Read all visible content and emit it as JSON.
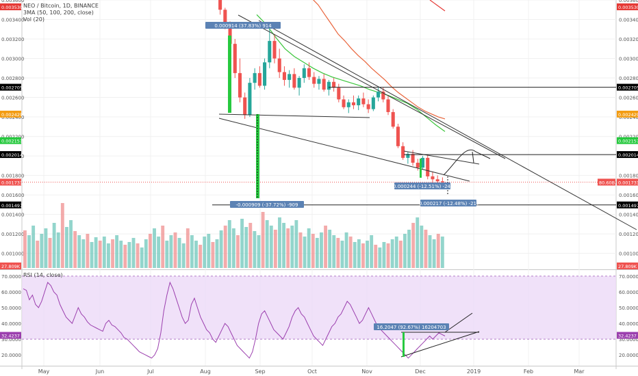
{
  "header": {
    "symbol_line": "NEO / Bitcoin, 1D, BINANCE",
    "ma_line": "3MA (50, 100, 200, close)",
    "vol_line": "Vol (20)"
  },
  "rsi_panel": {
    "label": "RSI (14, close)"
  },
  "colors": {
    "up": "#6fc7bb",
    "down": "#ef8f8f",
    "ma_fast": "#3ac53a",
    "ma_slow": "#e9633a",
    "rsi_line": "#9b3fae",
    "rsi_band": "#ecd9f7",
    "current_price": "#ef5350",
    "ruler": "#5b82b4"
  },
  "chart_data": [
    {
      "type": "candlestick",
      "series_name": "NEO / Bitcoin, 1D, BINANCE",
      "x_ticks": [
        "May",
        "Jun",
        "Jul",
        "Aug",
        "Sep",
        "Oct",
        "Nov",
        "Dec",
        "2019",
        "Feb",
        "Mar"
      ],
      "y_ticks": [
        "0.003600",
        "0.003400",
        "0.003200",
        "0.003000",
        "0.002800",
        "0.002600",
        "0.002400",
        "0.002200",
        "0.002000",
        "0.001800",
        "0.001600",
        "0.001400",
        "0.001200",
        "0.001000"
      ],
      "ylim": [
        0.00085,
        0.0036
      ],
      "price_labels": [
        {
          "text": "0.003530",
          "value": 0.00353,
          "color": "#e53935"
        },
        {
          "text": "0.002705",
          "value": 0.002705,
          "color": "#000000"
        },
        {
          "text": "0.002429",
          "value": 0.002429,
          "color": "#f39c12"
        },
        {
          "text": "0.002157",
          "value": 0.002157,
          "color": "#27c93f"
        },
        {
          "text": "0.002014",
          "value": 0.002014,
          "color": "#000000"
        },
        {
          "text": "0.001731",
          "value": 0.001731,
          "color": "#ef5350"
        },
        {
          "text": "0.001497",
          "value": 0.001497,
          "color": "#000000"
        }
      ],
      "left_labels": [
        {
          "text": "0.003530",
          "value": 0.00353,
          "color": "#e53935"
        },
        {
          "text": "0.002705",
          "value": 0.002705,
          "color": "#000000"
        },
        {
          "text": "0.002429",
          "value": 0.002429,
          "color": "#f39c12"
        },
        {
          "text": "0.002157",
          "value": 0.002157,
          "color": "#27c93f"
        },
        {
          "text": "0.002014",
          "value": 0.002014,
          "color": "#000000"
        },
        {
          "text": "0.001731",
          "value": 0.001731,
          "color": "#ef5350"
        },
        {
          "text": "0.001497",
          "value": 0.001497,
          "color": "#000000"
        }
      ],
      "horizontal_levels": [
        0.002705,
        0.002014,
        0.001497
      ],
      "volume_label": "27.809K",
      "volume_badge": "80.60B",
      "annotations": [
        {
          "text": "0.000914 (37.83%) 914"
        },
        {
          "text": "-0.000909 (-37.72%) -909"
        },
        {
          "text": "-0.000244 (-12.51%) -244"
        },
        {
          "text": "-0.000217 (-12.48%) -217"
        }
      ],
      "price_path": [
        [
          0.00362,
          0.00365,
          0.00345,
          0.0035
        ],
        [
          0.0035,
          0.00352,
          0.0033,
          0.00335
        ],
        [
          0.00335,
          0.00338,
          0.0031,
          0.00315
        ],
        [
          0.00315,
          0.0032,
          0.0028,
          0.00285
        ],
        [
          0.00285,
          0.003,
          0.00255,
          0.0026
        ],
        [
          0.0026,
          0.00265,
          0.00238,
          0.00242
        ],
        [
          0.00242,
          0.0028,
          0.0024,
          0.00275
        ],
        [
          0.00275,
          0.0029,
          0.00268,
          0.00285
        ],
        [
          0.00285,
          0.00292,
          0.0027,
          0.00272
        ],
        [
          0.00272,
          0.003,
          0.00268,
          0.00296
        ],
        [
          0.00296,
          0.0033,
          0.0029,
          0.00318
        ],
        [
          0.00318,
          0.00325,
          0.00295,
          0.003
        ],
        [
          0.003,
          0.0031,
          0.0028,
          0.00286
        ],
        [
          0.00286,
          0.00292,
          0.00272,
          0.00278
        ],
        [
          0.00278,
          0.00288,
          0.0027,
          0.00284
        ],
        [
          0.00284,
          0.0029,
          0.00268,
          0.0027
        ],
        [
          0.0027,
          0.00282,
          0.00262,
          0.0028
        ],
        [
          0.0028,
          0.00294,
          0.00275,
          0.0029
        ],
        [
          0.0029,
          0.00296,
          0.00278,
          0.00281
        ],
        [
          0.00281,
          0.00286,
          0.0027,
          0.00274
        ],
        [
          0.00274,
          0.00282,
          0.00268,
          0.00279
        ],
        [
          0.00279,
          0.00284,
          0.00266,
          0.00268
        ],
        [
          0.00268,
          0.00278,
          0.00262,
          0.00276
        ],
        [
          0.00276,
          0.0028,
          0.00266,
          0.0027
        ],
        [
          0.0027,
          0.00274,
          0.00255,
          0.00258
        ],
        [
          0.00258,
          0.00262,
          0.00248,
          0.0025
        ],
        [
          0.0025,
          0.00258,
          0.00244,
          0.00255
        ],
        [
          0.00255,
          0.00262,
          0.00248,
          0.00252
        ],
        [
          0.00252,
          0.00262,
          0.00247,
          0.00259
        ],
        [
          0.00259,
          0.00265,
          0.0025,
          0.00253
        ],
        [
          0.00253,
          0.00258,
          0.00244,
          0.00248
        ],
        [
          0.00248,
          0.00262,
          0.00246,
          0.0026
        ],
        [
          0.0026,
          0.0027,
          0.00256,
          0.00266
        ],
        [
          0.00266,
          0.0027,
          0.00255,
          0.00258
        ],
        [
          0.00258,
          0.00262,
          0.00242,
          0.00245
        ],
        [
          0.00245,
          0.00248,
          0.00228,
          0.0023
        ],
        [
          0.0023,
          0.00233,
          0.00208,
          0.0021
        ],
        [
          0.0021,
          0.00214,
          0.00196,
          0.00198
        ],
        [
          0.00198,
          0.00204,
          0.00192,
          0.00202
        ],
        [
          0.00202,
          0.00206,
          0.0019,
          0.00193
        ],
        [
          0.00193,
          0.00197,
          0.00185,
          0.00188
        ],
        [
          0.00188,
          0.002,
          0.00186,
          0.00198
        ],
        [
          0.00198,
          0.00201,
          0.00176,
          0.00179
        ],
        [
          0.00179,
          0.00184,
          0.0017,
          0.00176
        ],
        [
          0.00176,
          0.0018,
          0.0017,
          0.00174
        ],
        [
          0.00174,
          0.00178,
          0.00169,
          0.00173
        ]
      ],
      "ma_fast": [
        0.00345,
        0.00335,
        0.00322,
        0.0031,
        0.00302,
        0.00296,
        0.0029,
        0.00285,
        0.00281,
        0.00278,
        0.00275,
        0.00272,
        0.00268,
        0.00265,
        0.00262,
        0.00258,
        0.00254,
        0.00248,
        0.0024,
        0.00232,
        0.00225
      ],
      "ma_slow": [
        0.00362,
        0.00355,
        0.00345,
        0.00335,
        0.00325,
        0.00318,
        0.0031,
        0.00303,
        0.00297,
        0.0029,
        0.00284,
        0.00278,
        0.00271,
        0.00265,
        0.0026,
        0.00255,
        0.0025,
        0.00246,
        0.00243,
        0.0024,
        0.00238
      ],
      "volume": [
        0.55,
        0.48,
        0.62,
        0.4,
        0.5,
        0.58,
        0.44,
        0.66,
        0.52,
        0.95,
        0.6,
        0.7,
        0.54,
        0.48,
        0.42,
        0.5,
        0.38,
        0.45,
        0.4,
        0.46,
        0.36,
        0.42,
        0.48,
        0.4,
        0.34,
        0.38,
        0.44,
        0.36,
        0.3,
        0.42,
        0.5,
        0.58,
        0.46,
        0.62,
        0.4,
        0.48,
        0.52,
        0.44,
        0.36,
        0.58,
        0.48,
        0.4,
        0.34,
        0.46,
        0.5,
        0.38,
        0.42,
        0.55,
        0.62,
        0.7,
        0.58,
        0.48,
        0.72,
        0.6,
        0.66,
        0.54,
        0.48,
        0.82,
        0.7,
        0.62,
        0.56,
        0.74,
        0.66,
        0.58,
        0.62,
        0.7,
        0.52,
        0.46,
        0.58,
        0.5,
        0.44,
        0.52,
        0.62,
        0.56,
        0.48,
        0.44,
        0.4,
        0.52,
        0.46,
        0.38,
        0.42,
        0.36,
        0.4,
        0.48,
        0.34,
        0.3,
        0.38,
        0.36,
        0.42,
        0.46,
        0.4,
        0.5,
        0.56,
        0.66,
        0.74,
        0.62,
        0.56,
        0.48,
        0.42,
        0.5,
        0.46
      ],
      "rsi_ticks": [
        "70.0000",
        "60.0000",
        "50.0000",
        "40.0000",
        "30.0000",
        "20.0000"
      ],
      "rsi_ylim": [
        14,
        73
      ],
      "rsi_current": "32.4237",
      "rsi_annotation": "16.2047 (92.67%) 16204703",
      "rsi_values": [
        62,
        61,
        55,
        58,
        52,
        50,
        54,
        60,
        66,
        64,
        60,
        58,
        52,
        48,
        44,
        42,
        40,
        45,
        50,
        46,
        44,
        41,
        39,
        38,
        37,
        36,
        35,
        40,
        42,
        39,
        38,
        36,
        34,
        31,
        30,
        28,
        26,
        24,
        22,
        21,
        20,
        19,
        18,
        20,
        24,
        34,
        48,
        58,
        66,
        62,
        56,
        50,
        44,
        40,
        42,
        52,
        56,
        50,
        44,
        40,
        36,
        34,
        30,
        28,
        32,
        36,
        40,
        38,
        34,
        30,
        26,
        24,
        22,
        20,
        18,
        22,
        30,
        40,
        46,
        48,
        44,
        40,
        36,
        34,
        32,
        30,
        34,
        38,
        44,
        48,
        50,
        46,
        44,
        40,
        36,
        32,
        30,
        28,
        26,
        30,
        34,
        38,
        40,
        44,
        46,
        50,
        54,
        52,
        48,
        44,
        40,
        42,
        46,
        50,
        46,
        42,
        38,
        36,
        34,
        32,
        30,
        28,
        26,
        24,
        22,
        20,
        18,
        20,
        22,
        24,
        26,
        28,
        30,
        32,
        30,
        32,
        34,
        33,
        32
      ]
    }
  ]
}
